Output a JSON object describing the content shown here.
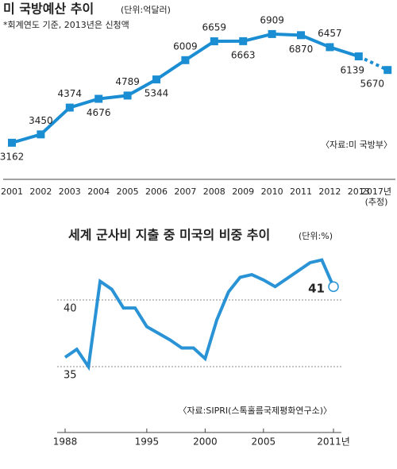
{
  "chart_data": [
    {
      "type": "line",
      "title": "미 국방예산 추이",
      "unit": "(단위:억달러)",
      "note": "*회계연도 기준, 2013년은 신청액",
      "source": "〈자료:미 국방부〉",
      "categories": [
        "2001",
        "2002",
        "2003",
        "2004",
        "2005",
        "2006",
        "2007",
        "2008",
        "2009",
        "2010",
        "2011",
        "2012",
        "2013",
        "2017년\n(추정)"
      ],
      "values": [
        3162,
        3450,
        4374,
        4676,
        4789,
        5344,
        6009,
        6659,
        6663,
        6909,
        6870,
        6457,
        6139,
        5670
      ],
      "color": "#1b8ed3",
      "ylim": [
        1900,
        7500
      ]
    },
    {
      "type": "line",
      "title": "세계 군사비 지출 중 미국의 비중 추이",
      "unit": "(단위:%)",
      "source": "〈자료:SIPRI(스톡홀름국제평화연구소)〉",
      "x": [
        1988,
        1989,
        1990,
        1991,
        1992,
        1993,
        1994,
        1995,
        1996,
        1997,
        1998,
        1999,
        2000,
        2001,
        2002,
        2003,
        2004,
        2005,
        2006,
        2007,
        2008,
        2009,
        2010,
        2011
      ],
      "values": [
        35.7,
        36.3,
        35.0,
        41.4,
        40.8,
        39.4,
        39.4,
        38.0,
        37.5,
        37.0,
        36.4,
        36.4,
        35.6,
        38.5,
        40.6,
        41.7,
        41.9,
        41.5,
        41.0,
        41.6,
        42.2,
        42.8,
        43.0,
        41
      ],
      "color": "#2a93d5",
      "ylim": [
        31,
        44
      ],
      "xlim": [
        1988,
        2011
      ],
      "yticks": [
        35,
        40
      ],
      "xticks": [
        1988,
        1995,
        2000,
        2005,
        {
          "value": 2011,
          "label": "2011년"
        }
      ],
      "grid": true
    }
  ]
}
